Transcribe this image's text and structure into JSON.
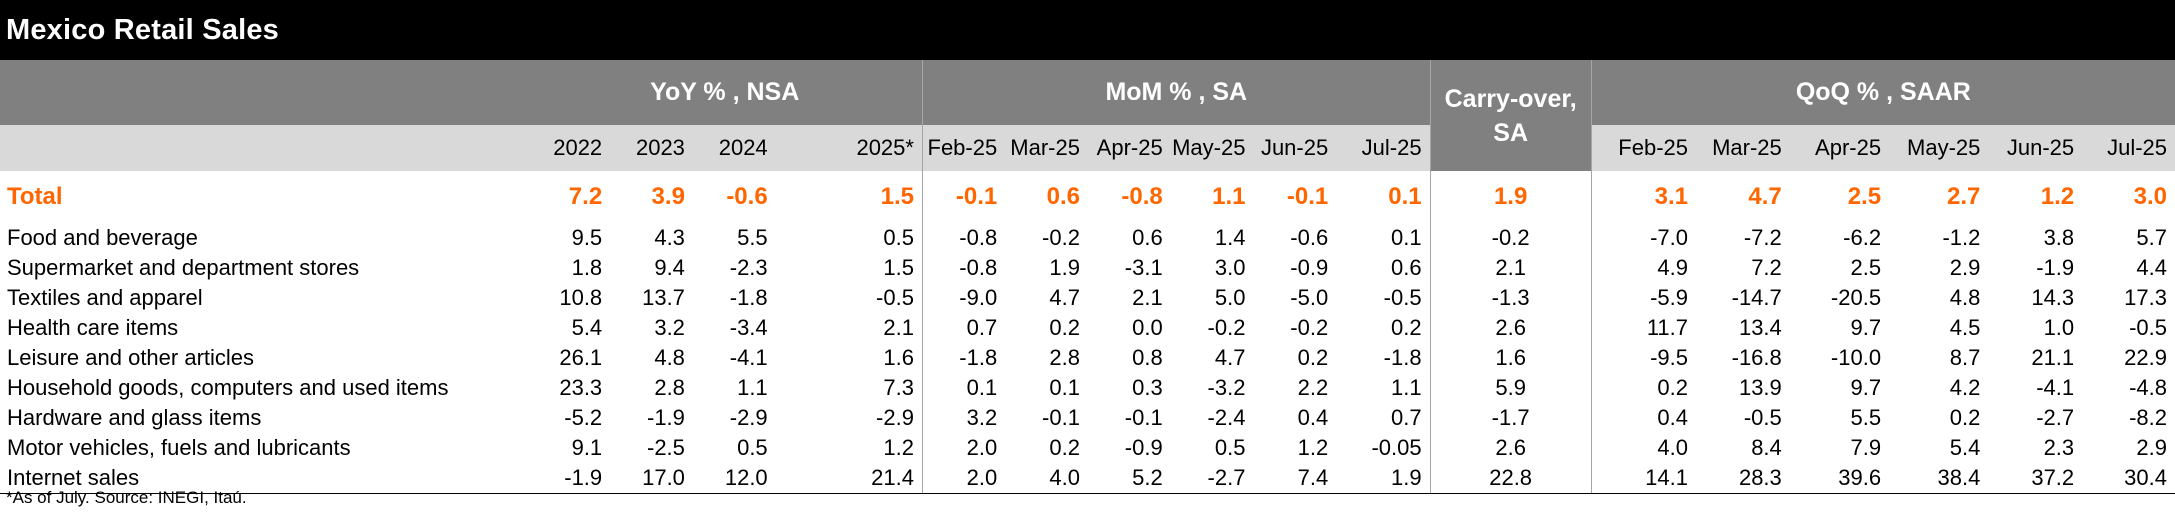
{
  "title": "Mexico Retail Sales",
  "groups": {
    "yoy": "YoY % , NSA",
    "mom": "MoM % , SA",
    "carry": "Carry-over,\nSA",
    "qoq": "QoQ % , SAAR"
  },
  "columns": {
    "yoy": [
      "2022",
      "2023",
      "2024",
      "2025*"
    ],
    "mom": [
      "Feb-25",
      "Mar-25",
      "Apr-25",
      "May-25",
      "Jun-25",
      "Jul-25"
    ],
    "qoq": [
      "Feb-25",
      "Mar-25",
      "Apr-25",
      "May-25",
      "Jun-25",
      "Jul-25"
    ]
  },
  "rows": [
    {
      "label": "Total",
      "yoy": [
        "7.2",
        "3.9",
        "-0.6",
        "1.5"
      ],
      "mom": [
        "-0.1",
        "0.6",
        "-0.8",
        "1.1",
        "-0.1",
        "0.1"
      ],
      "carry": "1.9",
      "qoq": [
        "3.1",
        "4.7",
        "2.5",
        "2.7",
        "1.2",
        "3.0"
      ]
    },
    {
      "label": "Food and beverage",
      "yoy": [
        "9.5",
        "4.3",
        "5.5",
        "0.5"
      ],
      "mom": [
        "-0.8",
        "-0.2",
        "0.6",
        "1.4",
        "-0.6",
        "0.1"
      ],
      "carry": "-0.2",
      "qoq": [
        "-7.0",
        "-7.2",
        "-6.2",
        "-1.2",
        "3.8",
        "5.7"
      ]
    },
    {
      "label": "Supermarket and department stores",
      "yoy": [
        "1.8",
        "9.4",
        "-2.3",
        "1.5"
      ],
      "mom": [
        "-0.8",
        "1.9",
        "-3.1",
        "3.0",
        "-0.9",
        "0.6"
      ],
      "carry": "2.1",
      "qoq": [
        "4.9",
        "7.2",
        "2.5",
        "2.9",
        "-1.9",
        "4.4"
      ]
    },
    {
      "label": "Textiles and apparel",
      "yoy": [
        "10.8",
        "13.7",
        "-1.8",
        "-0.5"
      ],
      "mom": [
        "-9.0",
        "4.7",
        "2.1",
        "5.0",
        "-5.0",
        "-0.5"
      ],
      "carry": "-1.3",
      "qoq": [
        "-5.9",
        "-14.7",
        "-20.5",
        "4.8",
        "14.3",
        "17.3"
      ]
    },
    {
      "label": "Health care items",
      "yoy": [
        "5.4",
        "3.2",
        "-3.4",
        "2.1"
      ],
      "mom": [
        "0.7",
        "0.2",
        "0.0",
        "-0.2",
        "-0.2",
        "0.2"
      ],
      "carry": "2.6",
      "qoq": [
        "11.7",
        "13.4",
        "9.7",
        "4.5",
        "1.0",
        "-0.5"
      ]
    },
    {
      "label": "Leisure and other articles",
      "yoy": [
        "26.1",
        "4.8",
        "-4.1",
        "1.6"
      ],
      "mom": [
        "-1.8",
        "2.8",
        "0.8",
        "4.7",
        "0.2",
        "-1.8"
      ],
      "carry": "1.6",
      "qoq": [
        "-9.5",
        "-16.8",
        "-10.0",
        "8.7",
        "21.1",
        "22.9"
      ]
    },
    {
      "label": "Household goods, computers and used items",
      "yoy": [
        "23.3",
        "2.8",
        "1.1",
        "7.3"
      ],
      "mom": [
        "0.1",
        "0.1",
        "0.3",
        "-3.2",
        "2.2",
        "1.1"
      ],
      "carry": "5.9",
      "qoq": [
        "0.2",
        "13.9",
        "9.7",
        "4.2",
        "-4.1",
        "-4.8"
      ]
    },
    {
      "label": "Hardware and glass items",
      "yoy": [
        "-5.2",
        "-1.9",
        "-2.9",
        "-2.9"
      ],
      "mom": [
        "3.2",
        "-0.1",
        "-0.1",
        "-2.4",
        "0.4",
        "0.7"
      ],
      "carry": "-1.7",
      "qoq": [
        "0.4",
        "-0.5",
        "5.5",
        "0.2",
        "-2.7",
        "-8.2"
      ]
    },
    {
      "label": "Motor vehicles, fuels and lubricants",
      "yoy": [
        "9.1",
        "-2.5",
        "0.5",
        "1.2"
      ],
      "mom": [
        "2.0",
        "0.2",
        "-0.9",
        "0.5",
        "1.2",
        "-0.05"
      ],
      "carry": "2.6",
      "qoq": [
        "4.0",
        "8.4",
        "7.9",
        "5.4",
        "2.3",
        "2.9"
      ]
    },
    {
      "label": "Internet sales",
      "yoy": [
        "-1.9",
        "17.0",
        "12.0",
        "21.4"
      ],
      "mom": [
        "2.0",
        "4.0",
        "5.2",
        "-2.7",
        "7.4",
        "1.9"
      ],
      "carry": "22.8",
      "qoq": [
        "14.1",
        "28.3",
        "39.6",
        "38.4",
        "37.2",
        "30.4"
      ]
    }
  ],
  "footnote": "*As of July. Source: INEGI, Itaú.",
  "colors": {
    "title_bg": "#000000",
    "header_dark": "#808080",
    "header_light": "#d9d9d9",
    "total_accent": "#ff6600"
  }
}
